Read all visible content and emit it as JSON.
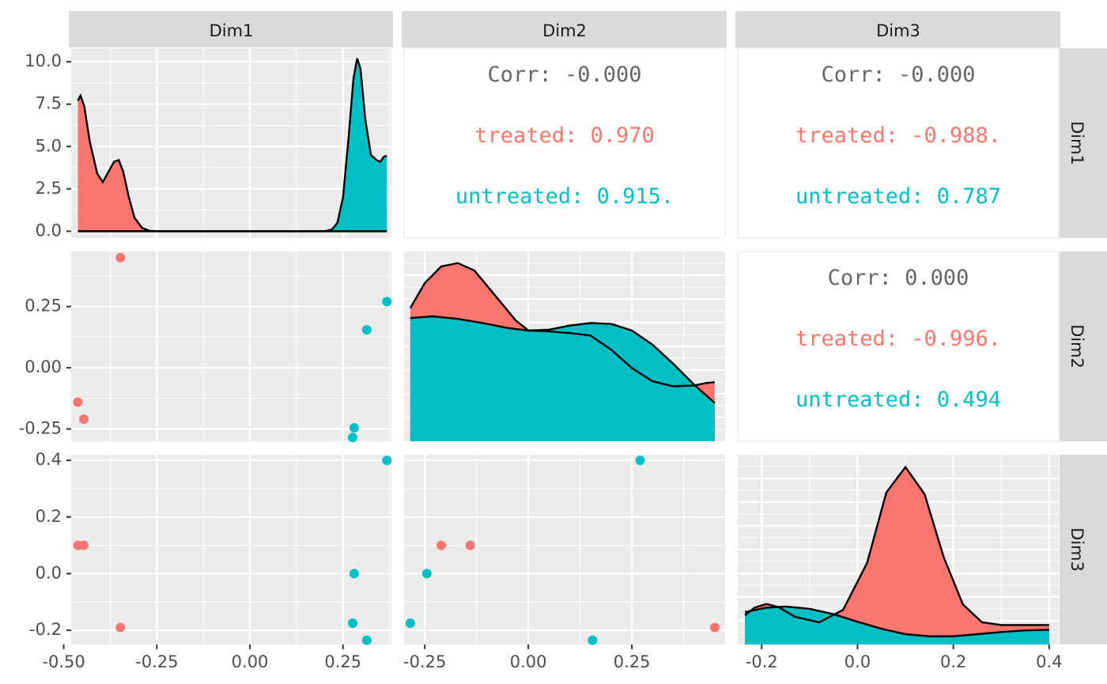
{
  "colors": {
    "treated": "#F8766D",
    "untreated": "#00BFC4",
    "corr": "#666666",
    "panel_bg": "#EBEBEB",
    "strip_bg": "#D9D9D9",
    "grid": "#FFFFFF"
  },
  "chart_data": {
    "type": "pairs",
    "title": "",
    "variables": [
      "Dim1",
      "Dim2",
      "Dim3"
    ],
    "groups": [
      "treated",
      "untreated"
    ],
    "axes": {
      "Dim1": {
        "range": [
          -0.48,
          0.38
        ],
        "ticks": [
          -0.5,
          -0.25,
          0.0,
          0.25
        ],
        "tick_labels": [
          "-0.50",
          "-0.25",
          "0.00",
          "0.25"
        ]
      },
      "Dim2": {
        "range": [
          -0.3,
          0.475
        ],
        "ticks": [
          -0.25,
          0.0,
          0.25
        ],
        "tick_labels": [
          "-0.25",
          "0.00",
          "0.25"
        ]
      },
      "Dim3": {
        "range": [
          -0.25,
          0.42
        ],
        "ticks": [
          -0.2,
          0.0,
          0.2,
          0.4
        ],
        "tick_labels": [
          "-0.2",
          "0.0",
          "0.2",
          "0.4"
        ]
      },
      "density_y": {
        "range": [
          -0.4,
          10.8
        ],
        "ticks": [
          0.0,
          2.5,
          5.0,
          7.5,
          10.0
        ],
        "tick_labels": [
          "0.0",
          "2.5",
          "5.0",
          "7.5",
          "10.0"
        ]
      }
    },
    "points": {
      "treated": [
        {
          "Dim1": -0.462,
          "Dim2": -0.14,
          "Dim3": 0.1
        },
        {
          "Dim1": -0.446,
          "Dim2": -0.21,
          "Dim3": 0.1
        },
        {
          "Dim1": -0.348,
          "Dim2": 0.45,
          "Dim3": -0.19
        }
      ],
      "untreated": [
        {
          "Dim1": 0.28,
          "Dim2": -0.245,
          "Dim3": 0.0
        },
        {
          "Dim1": 0.276,
          "Dim2": -0.285,
          "Dim3": -0.175
        },
        {
          "Dim1": 0.314,
          "Dim2": 0.155,
          "Dim3": -0.235
        },
        {
          "Dim1": 0.368,
          "Dim2": 0.27,
          "Dim3": 0.4
        }
      ]
    },
    "densities": {
      "Dim1": {
        "treated": [
          [
            -0.462,
            7.7
          ],
          [
            -0.455,
            8.0
          ],
          [
            -0.445,
            7.4
          ],
          [
            -0.43,
            5.3
          ],
          [
            -0.41,
            3.4
          ],
          [
            -0.395,
            2.9
          ],
          [
            -0.38,
            3.5
          ],
          [
            -0.365,
            4.1
          ],
          [
            -0.352,
            4.2
          ],
          [
            -0.34,
            3.5
          ],
          [
            -0.325,
            2.0
          ],
          [
            -0.31,
            0.8
          ],
          [
            -0.29,
            0.2
          ],
          [
            -0.27,
            0.03
          ],
          [
            -0.25,
            0.0
          ],
          [
            0.368,
            0.0
          ]
        ],
        "untreated": [
          [
            -0.462,
            0.0
          ],
          [
            0.2,
            0.0
          ],
          [
            0.22,
            0.1
          ],
          [
            0.235,
            0.5
          ],
          [
            0.25,
            2.0
          ],
          [
            0.265,
            5.5
          ],
          [
            0.278,
            9.0
          ],
          [
            0.288,
            10.2
          ],
          [
            0.297,
            9.6
          ],
          [
            0.31,
            6.6
          ],
          [
            0.325,
            4.5
          ],
          [
            0.34,
            4.2
          ],
          [
            0.35,
            4.1
          ],
          [
            0.36,
            4.4
          ],
          [
            0.368,
            4.45
          ]
        ]
      },
      "Dim2": {
        "treated": [
          [
            -0.285,
            1.6
          ],
          [
            -0.25,
            1.9
          ],
          [
            -0.21,
            2.1
          ],
          [
            -0.17,
            2.14
          ],
          [
            -0.13,
            2.05
          ],
          [
            -0.08,
            1.75
          ],
          [
            -0.03,
            1.45
          ],
          [
            0.0,
            1.33
          ],
          [
            0.05,
            1.32
          ],
          [
            0.1,
            1.3
          ],
          [
            0.15,
            1.27
          ],
          [
            0.2,
            1.1
          ],
          [
            0.25,
            0.88
          ],
          [
            0.3,
            0.72
          ],
          [
            0.35,
            0.66
          ],
          [
            0.4,
            0.67
          ],
          [
            0.43,
            0.7
          ],
          [
            0.45,
            0.71
          ]
        ],
        "untreated": [
          [
            -0.285,
            1.48
          ],
          [
            -0.23,
            1.5
          ],
          [
            -0.17,
            1.47
          ],
          [
            -0.11,
            1.42
          ],
          [
            -0.05,
            1.36
          ],
          [
            0.0,
            1.33
          ],
          [
            0.05,
            1.34
          ],
          [
            0.1,
            1.39
          ],
          [
            0.15,
            1.42
          ],
          [
            0.2,
            1.41
          ],
          [
            0.25,
            1.33
          ],
          [
            0.3,
            1.16
          ],
          [
            0.35,
            0.93
          ],
          [
            0.4,
            0.68
          ],
          [
            0.45,
            0.46
          ]
        ]
      },
      "Dim3": {
        "treated": [
          [
            -0.235,
            0.18
          ],
          [
            -0.215,
            0.32
          ],
          [
            -0.19,
            0.39
          ],
          [
            -0.165,
            0.33
          ],
          [
            -0.13,
            0.15
          ],
          [
            -0.08,
            0.05
          ],
          [
            -0.03,
            0.28
          ],
          [
            0.02,
            1.15
          ],
          [
            0.06,
            2.45
          ],
          [
            0.1,
            2.92
          ],
          [
            0.14,
            2.42
          ],
          [
            0.18,
            1.25
          ],
          [
            0.22,
            0.38
          ],
          [
            0.26,
            0.05
          ],
          [
            0.3,
            0.0
          ],
          [
            0.36,
            0.0
          ],
          [
            0.4,
            0.0
          ]
        ],
        "untreated": [
          [
            -0.235,
            0.24
          ],
          [
            -0.19,
            0.32
          ],
          [
            -0.15,
            0.34
          ],
          [
            -0.1,
            0.3
          ],
          [
            -0.05,
            0.2
          ],
          [
            0.0,
            0.06
          ],
          [
            0.05,
            -0.07
          ],
          [
            0.1,
            -0.17
          ],
          [
            0.15,
            -0.21
          ],
          [
            0.2,
            -0.21
          ],
          [
            0.25,
            -0.17
          ],
          [
            0.3,
            -0.13
          ],
          [
            0.35,
            -0.1
          ],
          [
            0.4,
            -0.09
          ]
        ]
      }
    },
    "density_ranges": {
      "Dim2": [
        0.0,
        2.28
      ],
      "Dim3": [
        -0.36,
        3.15
      ]
    },
    "correlations": {
      "Dim2_Dim1": {
        "corr": "Corr: -0.000",
        "treated": "treated: 0.970",
        "untreated": "untreated: 0.915."
      },
      "Dim3_Dim1": {
        "corr": "Corr: -0.000",
        "treated": "treated: -0.988.",
        "untreated": "untreated: 0.787"
      },
      "Dim3_Dim2": {
        "corr": "Corr: 0.000",
        "treated": "treated: -0.996.",
        "untreated": "untreated: 0.494"
      }
    },
    "grid": true,
    "legend": "none"
  }
}
